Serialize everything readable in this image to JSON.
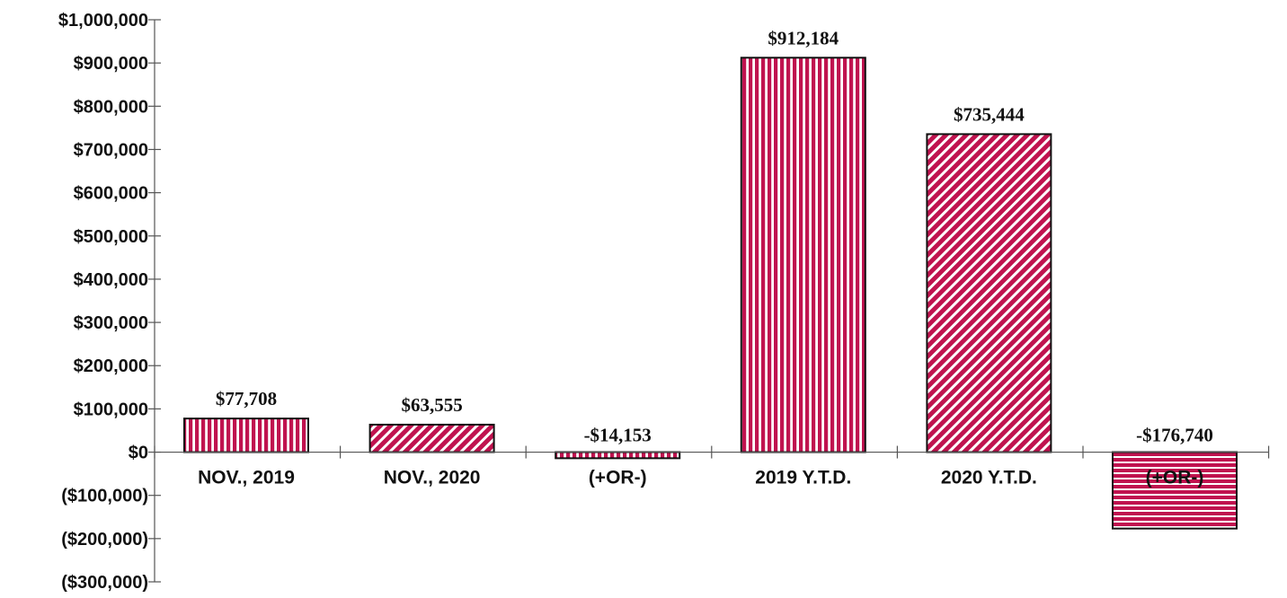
{
  "chart_data": {
    "type": "bar",
    "categories": [
      "NOV., 2019",
      "NOV., 2020",
      "(+OR-)",
      "2019 Y.T.D.",
      "2020 Y.T.D.",
      "(+OR-)"
    ],
    "values": [
      77708,
      63555,
      -14153,
      912184,
      735444,
      -176740
    ],
    "data_labels": [
      "$77,708",
      "$63,555",
      "-$14,153",
      "$912,184",
      "$735,444",
      "-$176,740"
    ],
    "patterns": [
      "vertical",
      "diagonal",
      "vertical",
      "vertical",
      "diagonal",
      "horizontal"
    ],
    "ylim": [
      -300000,
      1000000
    ],
    "yticks": [
      1000000,
      900000,
      800000,
      700000,
      600000,
      500000,
      400000,
      300000,
      200000,
      100000,
      0,
      -100000,
      -200000,
      -300000
    ],
    "ytick_labels": [
      "$1,000,000",
      "$900,000",
      "$800,000",
      "$700,000",
      "$600,000",
      "$500,000",
      "$400,000",
      "$300,000",
      "$200,000",
      "$100,000",
      "$0",
      "($100,000)",
      "($200,000)",
      "($300,000)"
    ],
    "title": "",
    "xlabel": "",
    "ylabel": "",
    "grid": false,
    "colors": {
      "bar": "#c0134f",
      "stripe": "#ffffff",
      "outline": "#111111",
      "axis": "#555555"
    }
  }
}
